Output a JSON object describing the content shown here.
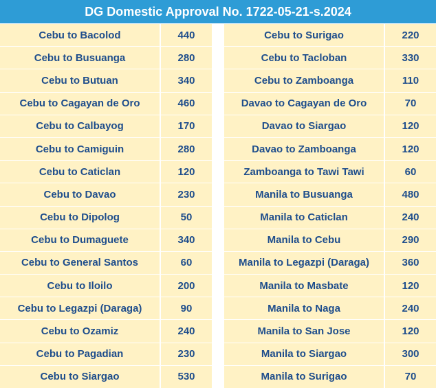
{
  "title": "DG Domestic Approval No. 1722-05-21-s.2024",
  "colors": {
    "header_bg": "#2e9cd6",
    "header_text": "#ffffff",
    "cell_bg": "#fff2c5",
    "cell_text": "#1f4e8c"
  },
  "left": [
    {
      "route": "Cebu to Bacolod",
      "price": "440"
    },
    {
      "route": "Cebu to Busuanga",
      "price": "280"
    },
    {
      "route": "Cebu to Butuan",
      "price": "340"
    },
    {
      "route": "Cebu to Cagayan de Oro",
      "price": "460"
    },
    {
      "route": "Cebu to Calbayog",
      "price": "170"
    },
    {
      "route": "Cebu to Camiguin",
      "price": "280"
    },
    {
      "route": "Cebu to Caticlan",
      "price": "120"
    },
    {
      "route": "Cebu to Davao",
      "price": "230"
    },
    {
      "route": "Cebu to Dipolog",
      "price": "50"
    },
    {
      "route": "Cebu to Dumaguete",
      "price": "340"
    },
    {
      "route": "Cebu to General Santos",
      "price": "60"
    },
    {
      "route": "Cebu to Iloilo",
      "price": "200"
    },
    {
      "route": "Cebu to Legazpi (Daraga)",
      "price": "90"
    },
    {
      "route": "Cebu to Ozamiz",
      "price": "240"
    },
    {
      "route": "Cebu to Pagadian",
      "price": "230"
    },
    {
      "route": "Cebu to Siargao",
      "price": "530"
    }
  ],
  "right": [
    {
      "route": "Cebu to Surigao",
      "price": "220"
    },
    {
      "route": "Cebu to Tacloban",
      "price": "330"
    },
    {
      "route": "Cebu to Zamboanga",
      "price": "110"
    },
    {
      "route": "Davao to Cagayan de Oro",
      "price": "70"
    },
    {
      "route": "Davao to Siargao",
      "price": "120"
    },
    {
      "route": "Davao to Zamboanga",
      "price": "120"
    },
    {
      "route": "Zamboanga to Tawi Tawi",
      "price": "60"
    },
    {
      "route": "Manila to Busuanga",
      "price": "480"
    },
    {
      "route": "Manila to Caticlan",
      "price": "240"
    },
    {
      "route": "Manila to Cebu",
      "price": "290"
    },
    {
      "route": "Manila to Legazpi (Daraga)",
      "price": "360"
    },
    {
      "route": "Manila to Masbate",
      "price": "120"
    },
    {
      "route": "Manila to Naga",
      "price": "240"
    },
    {
      "route": "Manila to San Jose",
      "price": "120"
    },
    {
      "route": "Manila to Siargao",
      "price": "300"
    },
    {
      "route": "Manila to Surigao",
      "price": "70"
    }
  ]
}
